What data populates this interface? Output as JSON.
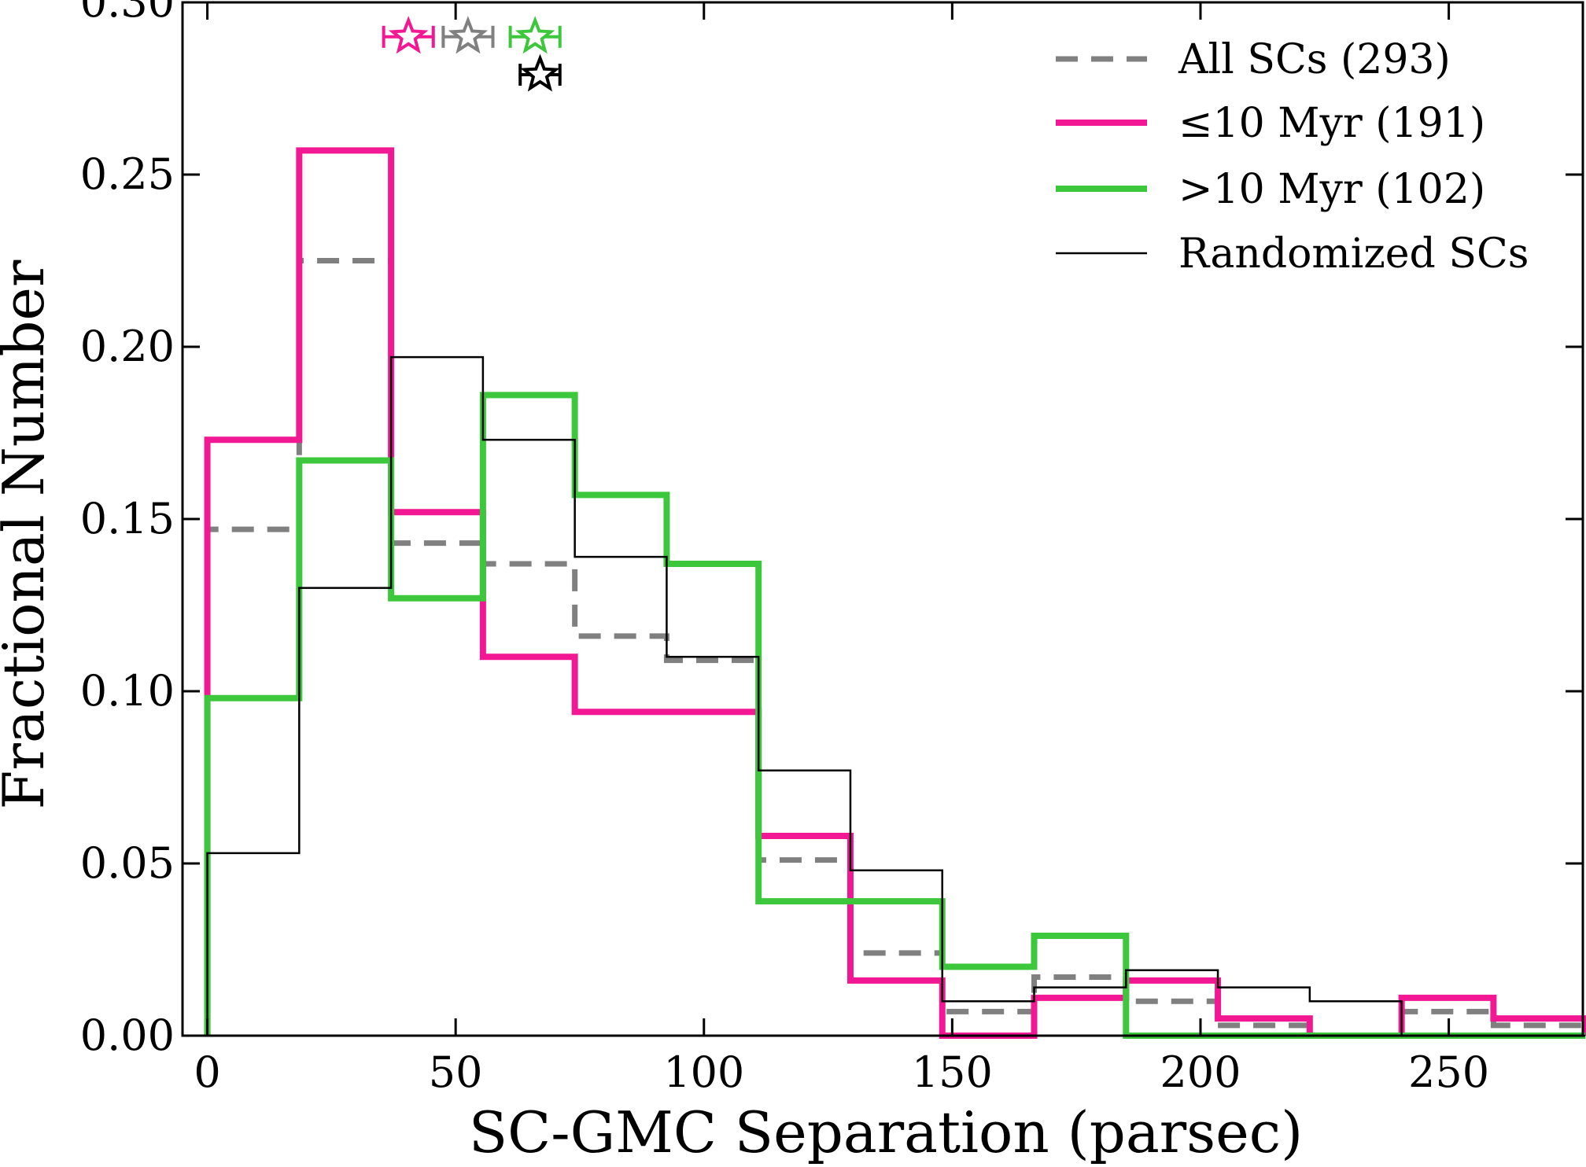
{
  "chart_data": {
    "type": "step",
    "title": "",
    "xlabel": "SC-GMC Separation (parsec)",
    "ylabel": "Fractional Number",
    "xlim": [
      -5,
      277
    ],
    "ylim": [
      0,
      0.3
    ],
    "xticks": [
      0,
      50,
      100,
      150,
      200,
      250
    ],
    "xtick_labels": [
      "0",
      "50",
      "100",
      "150",
      "200",
      "250"
    ],
    "yticks": [
      0.0,
      0.05,
      0.1,
      0.15,
      0.2,
      0.25,
      0.3
    ],
    "ytick_labels": [
      "0.00",
      "0.05",
      "0.10",
      "0.15",
      "0.20",
      "0.25",
      "0.30"
    ],
    "grid": false,
    "legend_position": "top-right",
    "bin_edges": [
      0,
      18.5,
      37,
      55.5,
      74,
      92.5,
      111,
      129.5,
      148,
      166.5,
      185,
      203.5,
      222,
      240.5,
      259,
      277.5
    ],
    "series": [
      {
        "name": "All SCs (293)",
        "color": "#808080",
        "style": "dashed",
        "values": [
          0.147,
          0.225,
          0.143,
          0.137,
          0.116,
          0.109,
          0.051,
          0.024,
          0.007,
          0.017,
          0.01,
          0.003,
          0.0,
          0.007,
          0.003
        ],
        "marker": {
          "x": 52.5,
          "xerr": 5,
          "y": 0.29
        }
      },
      {
        "name": "≤10 Myr (191)",
        "color": "#f21894",
        "style": "solid-thick",
        "values": [
          0.173,
          0.257,
          0.152,
          0.11,
          0.094,
          0.094,
          0.058,
          0.016,
          0.0,
          0.011,
          0.016,
          0.005,
          0.0,
          0.011,
          0.005
        ],
        "marker": {
          "x": 40.5,
          "xerr": 5,
          "y": 0.29
        }
      },
      {
        "name": ">10 Myr (102)",
        "color": "#3cc73c",
        "style": "solid-thick",
        "values": [
          0.098,
          0.167,
          0.127,
          0.186,
          0.157,
          0.137,
          0.039,
          0.039,
          0.02,
          0.029,
          0.0,
          0.0,
          0.0,
          0.0,
          0.0
        ],
        "marker": {
          "x": 66,
          "xerr": 5,
          "y": 0.29
        }
      },
      {
        "name": "Randomized SCs",
        "color": "#000000",
        "style": "solid-thin",
        "values": [
          0.053,
          0.13,
          0.197,
          0.173,
          0.139,
          0.11,
          0.077,
          0.048,
          0.01,
          0.014,
          0.019,
          0.014,
          0.01,
          0.0,
          0.0
        ],
        "marker": {
          "x": 67,
          "xerr": 4,
          "y": 0.279
        }
      }
    ]
  }
}
